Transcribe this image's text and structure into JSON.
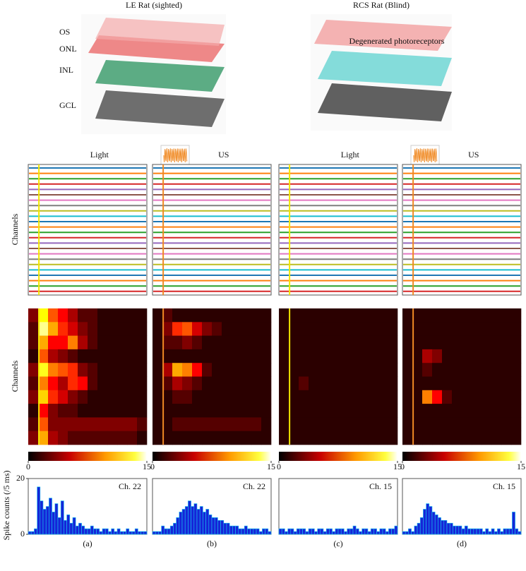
{
  "titles": [
    "LE Rat (sighted)",
    "RCS Rat (Blind)"
  ],
  "retina_labels": [
    "OS",
    "ONL",
    "INL",
    "GCL"
  ],
  "annotation": "Degenerated photoreceptors",
  "trace_ylabel": "Channels",
  "heatmap_ylabel": "Channels",
  "chart_data": [
    {
      "type": "heatmap",
      "stimulus": "Light",
      "stimulus_color": "#f2e600",
      "clim": [
        0,
        15
      ],
      "cticks": [
        0,
        15
      ],
      "values": [
        [
          3,
          12,
          8,
          6,
          4,
          2,
          2,
          1,
          1,
          1,
          1,
          1
        ],
        [
          2,
          14,
          10,
          7,
          5,
          3,
          2,
          1,
          1,
          1,
          1,
          1
        ],
        [
          2,
          10,
          6,
          6,
          9,
          4,
          2,
          1,
          1,
          1,
          1,
          1
        ],
        [
          1,
          8,
          4,
          3,
          2,
          1,
          1,
          1,
          1,
          1,
          1,
          1
        ],
        [
          3,
          13,
          9,
          8,
          7,
          3,
          2,
          1,
          1,
          1,
          1,
          1
        ],
        [
          2,
          9,
          6,
          4,
          7,
          6,
          2,
          1,
          1,
          1,
          1,
          1
        ],
        [
          3,
          11,
          7,
          5,
          3,
          2,
          1,
          1,
          1,
          1,
          1,
          1
        ],
        [
          1,
          6,
          3,
          2,
          2,
          1,
          1,
          1,
          1,
          1,
          1,
          1
        ],
        [
          2,
          8,
          3,
          3,
          3,
          3,
          3,
          3,
          3,
          3,
          3,
          2
        ],
        [
          3,
          10,
          4,
          3,
          2,
          2,
          2,
          2,
          2,
          2,
          2,
          1
        ]
      ]
    },
    {
      "type": "heatmap",
      "stimulus": "US",
      "stimulus_color": "#f08a24",
      "clim": [
        0,
        15
      ],
      "cticks": [
        0,
        15
      ],
      "values": [
        [
          1,
          2,
          1,
          1,
          1,
          1,
          1,
          1,
          1,
          1,
          1,
          1
        ],
        [
          1,
          3,
          7,
          8,
          5,
          3,
          2,
          1,
          1,
          1,
          1,
          1
        ],
        [
          1,
          2,
          2,
          3,
          2,
          1,
          1,
          1,
          1,
          1,
          1,
          1
        ],
        [
          1,
          1,
          1,
          1,
          1,
          1,
          1,
          1,
          1,
          1,
          1,
          1
        ],
        [
          1,
          4,
          10,
          9,
          6,
          2,
          1,
          1,
          1,
          1,
          1,
          1
        ],
        [
          1,
          2,
          4,
          3,
          2,
          1,
          1,
          1,
          1,
          1,
          1,
          1
        ],
        [
          1,
          1,
          2,
          2,
          1,
          1,
          1,
          1,
          1,
          1,
          1,
          1
        ],
        [
          1,
          1,
          1,
          1,
          1,
          1,
          1,
          1,
          1,
          1,
          1,
          1
        ],
        [
          1,
          1,
          2,
          2,
          2,
          2,
          2,
          2,
          2,
          2,
          2,
          1
        ],
        [
          1,
          1,
          1,
          1,
          1,
          1,
          1,
          1,
          1,
          1,
          1,
          1
        ]
      ]
    },
    {
      "type": "heatmap",
      "stimulus": "Light",
      "stimulus_color": "#f2e600",
      "clim": [
        0,
        15
      ],
      "cticks": [
        0,
        15
      ],
      "values": [
        [
          1,
          1,
          1,
          1,
          1,
          1,
          1,
          1,
          1,
          1,
          1,
          1
        ],
        [
          1,
          1,
          1,
          1,
          1,
          1,
          1,
          1,
          1,
          1,
          1,
          1
        ],
        [
          1,
          1,
          1,
          1,
          1,
          1,
          1,
          1,
          1,
          1,
          1,
          1
        ],
        [
          1,
          1,
          1,
          1,
          1,
          1,
          1,
          1,
          1,
          1,
          1,
          1
        ],
        [
          1,
          1,
          1,
          1,
          1,
          1,
          1,
          1,
          1,
          1,
          1,
          1
        ],
        [
          1,
          1,
          2,
          1,
          1,
          1,
          1,
          1,
          1,
          1,
          1,
          1
        ],
        [
          1,
          1,
          1,
          1,
          1,
          1,
          1,
          1,
          1,
          1,
          1,
          1
        ],
        [
          1,
          1,
          1,
          1,
          1,
          1,
          1,
          1,
          1,
          1,
          1,
          1
        ],
        [
          1,
          1,
          1,
          1,
          1,
          1,
          1,
          1,
          1,
          1,
          1,
          1
        ],
        [
          1,
          1,
          1,
          1,
          1,
          1,
          1,
          1,
          1,
          1,
          1,
          1
        ]
      ]
    },
    {
      "type": "heatmap",
      "stimulus": "US",
      "stimulus_color": "#f08a24",
      "clim": [
        0,
        15
      ],
      "cticks": [
        0,
        15
      ],
      "values": [
        [
          1,
          1,
          1,
          1,
          1,
          1,
          1,
          1,
          1,
          1,
          1,
          1
        ],
        [
          1,
          1,
          1,
          1,
          1,
          1,
          1,
          1,
          1,
          1,
          1,
          1
        ],
        [
          1,
          1,
          1,
          1,
          1,
          1,
          1,
          1,
          1,
          1,
          1,
          1
        ],
        [
          1,
          1,
          4,
          3,
          1,
          1,
          1,
          1,
          1,
          1,
          1,
          1
        ],
        [
          1,
          1,
          2,
          1,
          1,
          1,
          1,
          1,
          1,
          1,
          1,
          1
        ],
        [
          1,
          1,
          1,
          1,
          1,
          1,
          1,
          1,
          1,
          1,
          1,
          1
        ],
        [
          1,
          1,
          9,
          6,
          2,
          1,
          1,
          1,
          1,
          1,
          1,
          1
        ],
        [
          1,
          1,
          1,
          1,
          1,
          1,
          1,
          1,
          1,
          1,
          1,
          1
        ],
        [
          1,
          1,
          1,
          1,
          1,
          1,
          1,
          1,
          1,
          1,
          1,
          1
        ],
        [
          1,
          1,
          1,
          1,
          1,
          1,
          1,
          1,
          1,
          1,
          1,
          1
        ]
      ]
    },
    {
      "type": "bar",
      "title": "Ch. 22",
      "label": "(a)",
      "ylabel": "Spike counts (/5 ms)",
      "color": "#1525d8",
      "edge_color": "#18c8f0",
      "ylim": [
        0,
        20
      ],
      "yticks": [
        0,
        20
      ],
      "values": [
        1,
        1,
        2,
        17,
        12,
        9,
        10,
        13,
        8,
        11,
        6,
        12,
        5,
        7,
        4,
        6,
        3,
        4,
        3,
        2,
        2,
        3,
        2,
        2,
        1,
        2,
        2,
        1,
        2,
        1,
        2,
        1,
        1,
        2,
        1,
        1,
        2,
        1,
        1,
        1
      ]
    },
    {
      "type": "bar",
      "title": "Ch. 22",
      "label": "(b)",
      "color": "#1525d8",
      "edge_color": "#18c8f0",
      "ylim": [
        0,
        20
      ],
      "values": [
        1,
        1,
        1,
        3,
        2,
        2,
        3,
        4,
        6,
        8,
        9,
        10,
        12,
        10,
        11,
        9,
        10,
        8,
        9,
        7,
        6,
        6,
        5,
        5,
        4,
        4,
        3,
        3,
        3,
        2,
        2,
        3,
        2,
        2,
        2,
        2,
        1,
        2,
        2,
        1
      ]
    },
    {
      "type": "bar",
      "title": "Ch. 15",
      "label": "(c)",
      "color": "#1525d8",
      "edge_color": "#18c8f0",
      "ylim": [
        0,
        20
      ],
      "values": [
        2,
        2,
        1,
        2,
        2,
        1,
        2,
        2,
        2,
        1,
        2,
        2,
        1,
        2,
        2,
        1,
        2,
        2,
        1,
        2,
        2,
        2,
        1,
        2,
        2,
        3,
        2,
        1,
        2,
        2,
        1,
        2,
        2,
        1,
        2,
        2,
        1,
        2,
        2,
        3
      ]
    },
    {
      "type": "bar",
      "title": "Ch. 15",
      "label": "(d)",
      "color": "#1525d8",
      "edge_color": "#18c8f0",
      "ylim": [
        0,
        20
      ],
      "values": [
        1,
        1,
        2,
        1,
        3,
        4,
        6,
        9,
        11,
        10,
        8,
        7,
        6,
        5,
        5,
        4,
        4,
        3,
        3,
        3,
        2,
        3,
        2,
        2,
        2,
        2,
        2,
        1,
        2,
        1,
        2,
        1,
        2,
        1,
        2,
        2,
        2,
        8,
        2,
        1
      ]
    }
  ]
}
